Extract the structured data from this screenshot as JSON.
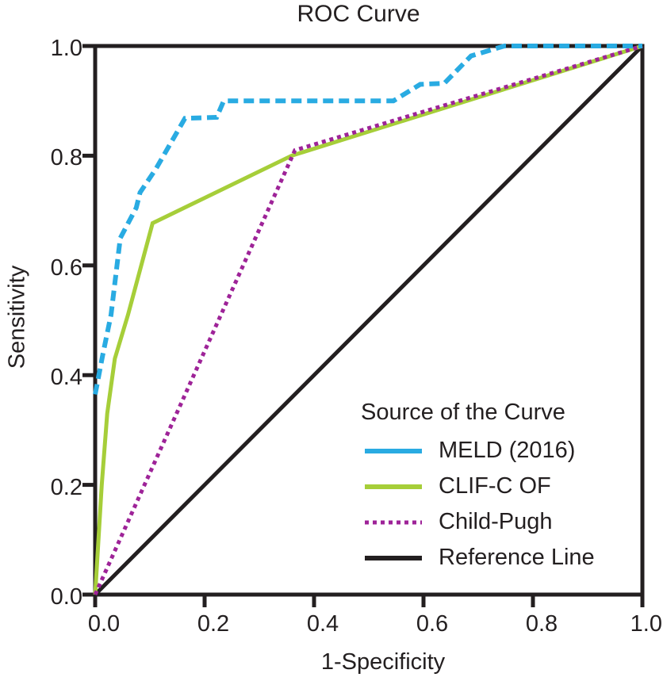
{
  "figure": {
    "background": "#FFFFFF",
    "text_color": "#231F20"
  },
  "chart_data": {
    "type": "line",
    "title": "ROC Curve",
    "xlabel": "1-Specificity",
    "ylabel": "Sensitivity",
    "xlim": [
      0.0,
      1.0
    ],
    "ylim": [
      0.0,
      1.0
    ],
    "x_ticks": [
      "0.0",
      "0.2",
      "0.4",
      "0.6",
      "0.8",
      "1.0"
    ],
    "y_ticks": [
      "0.0",
      "0.2",
      "0.4",
      "0.6",
      "0.8",
      "1.0"
    ],
    "grid": false,
    "axis_color": "#231F20",
    "legend_position": "inside-lower-right",
    "series": [
      {
        "name": "MELD (2016)",
        "color": "#29ABE2",
        "line_style": "dashed",
        "legend_swatch": "solid",
        "z": 4,
        "points": [
          [
            0.0,
            0.365
          ],
          [
            0.014,
            0.438
          ],
          [
            0.029,
            0.51
          ],
          [
            0.046,
            0.65
          ],
          [
            0.075,
            0.705
          ],
          [
            0.082,
            0.733
          ],
          [
            0.111,
            0.776
          ],
          [
            0.164,
            0.868
          ],
          [
            0.222,
            0.87
          ],
          [
            0.235,
            0.9
          ],
          [
            0.545,
            0.9
          ],
          [
            0.594,
            0.93
          ],
          [
            0.638,
            0.932
          ],
          [
            0.687,
            0.982
          ],
          [
            0.748,
            1.0
          ],
          [
            1.0,
            1.0
          ]
        ]
      },
      {
        "name": "CLIF-C OF",
        "color": "#A6CE39",
        "line_style": "solid",
        "legend_swatch": "solid",
        "z": 2,
        "points": [
          [
            0.0,
            0.0
          ],
          [
            0.012,
            0.2
          ],
          [
            0.022,
            0.33
          ],
          [
            0.036,
            0.43
          ],
          [
            0.06,
            0.51
          ],
          [
            0.105,
            0.677
          ],
          [
            0.359,
            0.8
          ],
          [
            1.0,
            1.0
          ]
        ]
      },
      {
        "name": "Child-Pugh",
        "color": "#9E2398",
        "line_style": "dotted",
        "legend_swatch": "dotted",
        "z": 3,
        "points": [
          [
            0.0,
            0.0
          ],
          [
            0.365,
            0.81
          ],
          [
            1.0,
            1.0
          ]
        ]
      },
      {
        "name": "Reference Line",
        "color": "#231F20",
        "line_style": "solid",
        "legend_swatch": "solid",
        "z": 1,
        "points": [
          [
            0.0,
            0.0
          ],
          [
            1.0,
            1.0
          ]
        ]
      }
    ]
  },
  "legend": {
    "title": "Source of the Curve"
  }
}
